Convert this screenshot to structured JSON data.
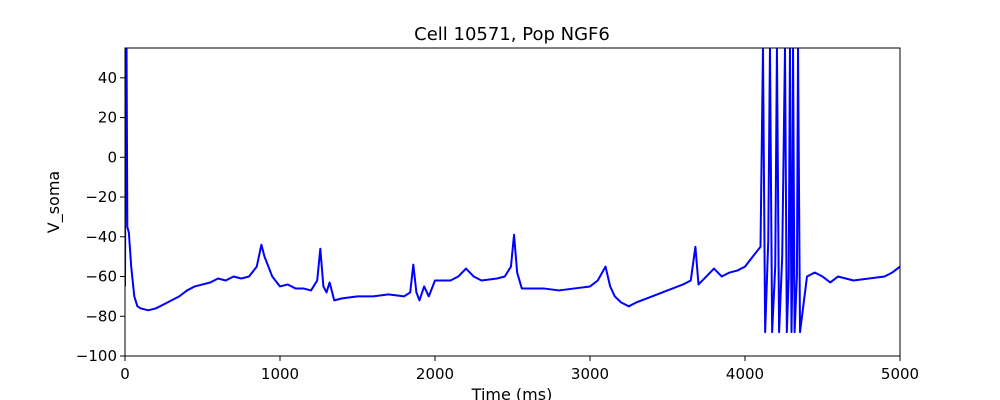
{
  "chart_data": {
    "type": "line",
    "title": "Cell 10571, Pop NGF6",
    "x_label": "Time (ms)",
    "y_label": "V_soma",
    "x": [
      0,
      5,
      10,
      15,
      25,
      40,
      60,
      80,
      100,
      150,
      200,
      250,
      300,
      350,
      400,
      450,
      500,
      550,
      600,
      650,
      700,
      750,
      800,
      850,
      880,
      900,
      950,
      1000,
      1050,
      1100,
      1150,
      1200,
      1240,
      1260,
      1280,
      1300,
      1320,
      1350,
      1400,
      1500,
      1600,
      1700,
      1800,
      1840,
      1860,
      1880,
      1900,
      1930,
      1960,
      2000,
      2100,
      2150,
      2200,
      2250,
      2300,
      2400,
      2450,
      2490,
      2510,
      2530,
      2560,
      2600,
      2700,
      2800,
      2900,
      3000,
      3050,
      3100,
      3130,
      3160,
      3200,
      3250,
      3300,
      3400,
      3500,
      3600,
      3650,
      3680,
      3700,
      3750,
      3800,
      3850,
      3900,
      3950,
      4000,
      4050,
      4080,
      4100,
      4116,
      4130,
      4150,
      4161,
      4175,
      4195,
      4206,
      4220,
      4240,
      4258,
      4270,
      4282,
      4290,
      4300,
      4305,
      4310,
      4320,
      4335,
      4342,
      4355,
      4400,
      4450,
      4500,
      4550,
      4600,
      4700,
      4800,
      4900,
      4950,
      5000
    ],
    "series": [
      {
        "color": "#0000ff",
        "values": [
          -65,
          55,
          55,
          -35,
          -38,
          -55,
          -70,
          -75,
          -76,
          -77,
          -76,
          -74,
          -72,
          -70,
          -67,
          -65,
          -64,
          -63,
          -61,
          -62,
          -60,
          -61,
          -60,
          -55,
          -44,
          -50,
          -60,
          -65,
          -64,
          -66,
          -66,
          -67,
          -62,
          -46,
          -65,
          -68,
          -63,
          -72,
          -71,
          -70,
          -70,
          -69,
          -70,
          -68,
          -54,
          -68,
          -72,
          -65,
          -70,
          -62,
          -62,
          -60,
          -56,
          -60,
          -62,
          -61,
          -60,
          -55,
          -39,
          -58,
          -66,
          -66,
          -66,
          -67,
          -66,
          -65,
          -62,
          -55,
          -65,
          -70,
          -73,
          -75,
          -73,
          -70,
          -67,
          -64,
          -62,
          -45,
          -64,
          -60,
          -56,
          -60,
          -58,
          -57,
          -55,
          -50,
          -47,
          -45,
          55,
          -88,
          -42,
          55,
          -88,
          -55,
          55,
          -88,
          -50,
          55,
          -88,
          -60,
          55,
          -88,
          -60,
          55,
          -88,
          -60,
          55,
          -88,
          -60,
          -58,
          -60,
          -63,
          -60,
          -62,
          -61,
          -60,
          -58,
          -55
        ]
      }
    ],
    "xlim": [
      0,
      5000
    ],
    "ylim": [
      -100,
      55
    ],
    "xticks": [
      0,
      1000,
      2000,
      3000,
      4000,
      5000
    ],
    "yticks": [
      {
        "value": -100,
        "label": "−100"
      },
      {
        "value": -80,
        "label": "−80"
      },
      {
        "value": -60,
        "label": "−60"
      },
      {
        "value": -40,
        "label": "−40"
      },
      {
        "value": -20,
        "label": "−20"
      },
      0,
      20,
      40
    ]
  }
}
